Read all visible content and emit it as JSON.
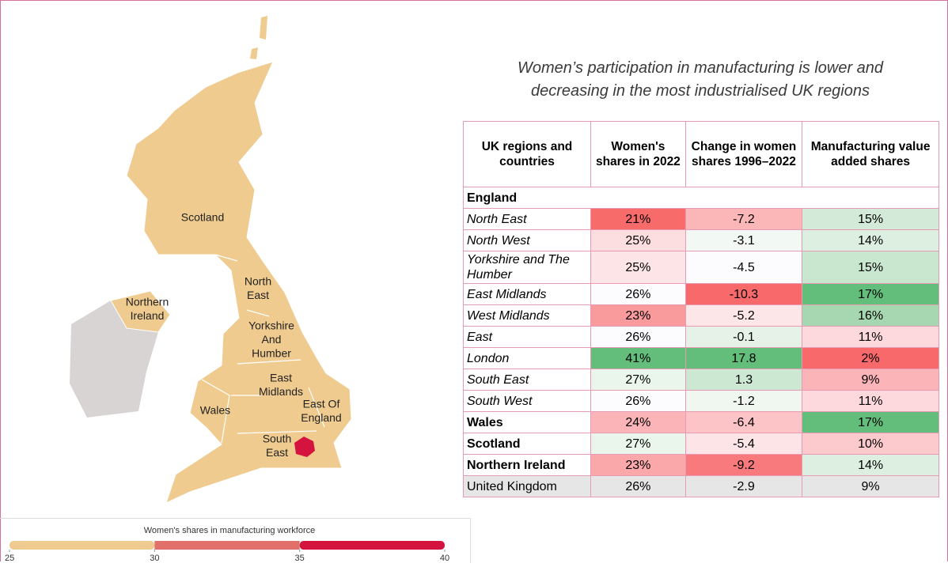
{
  "title": [
    "Women’s participation in manufacturing is lower and",
    "decreasing in the most industrialised UK regions"
  ],
  "map": {
    "labels": [
      {
        "lines": [
          "Scotland"
        ]
      },
      {
        "lines": [
          "Northern",
          "Ireland"
        ]
      },
      {
        "lines": [
          "North",
          "East"
        ]
      },
      {
        "lines": [
          "Yorkshire",
          "And",
          "Humber"
        ]
      },
      {
        "lines": [
          "East",
          "Midlands"
        ]
      },
      {
        "lines": [
          "Wales"
        ]
      },
      {
        "lines": [
          "East Of",
          "England"
        ]
      },
      {
        "lines": [
          "South",
          "East"
        ]
      }
    ],
    "legend": {
      "title": "Women's shares in manufacturing workforce",
      "lim": [
        25,
        40
      ],
      "ticks": [
        25,
        30,
        35,
        40
      ],
      "colors": [
        "#efcb8f",
        "#e2706a",
        "#d5133f"
      ]
    }
  },
  "table": {
    "header": [
      "UK regions and countries",
      "Women's shares in 2022",
      "Change in women shares 1996–2022",
      "Manufacturing value added shares"
    ],
    "rows": [
      {
        "label": "England",
        "style": "bold"
      },
      {
        "label": "North East",
        "style": "italic",
        "cells": [
          "21%",
          "-7.2",
          "15%"
        ],
        "colors": [
          "#ffffff",
          "#f86b6b",
          "#fbb7b7",
          "#d3ead8"
        ]
      },
      {
        "label": "North West",
        "style": "italic",
        "cells": [
          "25%",
          "-3.1",
          "14%"
        ],
        "colors": [
          "#ffffff",
          "#fcdde0",
          "#f2f8f3",
          "#dcefe0"
        ]
      },
      {
        "label": "Yorkshire and The Humber",
        "style": "italic",
        "cells": [
          "25%",
          "-4.5",
          "15%"
        ],
        "colors": [
          "#ffffff",
          "#fce4e7",
          "#fcfcff",
          "#c9e6cf"
        ]
      },
      {
        "label": "East Midlands",
        "style": "italic",
        "cells": [
          "26%",
          "-10.3",
          "17%"
        ],
        "colors": [
          "#ffffff",
          "#fcfcff",
          "#f8696b",
          "#63be7b"
        ]
      },
      {
        "label": "West Midlands",
        "style": "italic",
        "cells": [
          "23%",
          "-5.2",
          "16%"
        ],
        "colors": [
          "#ffffff",
          "#f99a9c",
          "#fde6e8",
          "#a6d7b1"
        ]
      },
      {
        "label": "East",
        "style": "italic",
        "cells": [
          "26%",
          "-0.1",
          "11%"
        ],
        "colors": [
          "#ffffff",
          "#fcfcff",
          "#e6f2e8",
          "#fdd8dc"
        ]
      },
      {
        "label": "London",
        "style": "italic",
        "cells": [
          "41%",
          "17.8",
          "2%"
        ],
        "colors": [
          "#ffffff",
          "#63be7b",
          "#63be7b",
          "#f8696b"
        ]
      },
      {
        "label": "South East",
        "style": "italic",
        "cells": [
          "27%",
          "1.3",
          "9%"
        ],
        "colors": [
          "#ffffff",
          "#eaf5ec",
          "#cce8d3",
          "#fbb4b8"
        ]
      },
      {
        "label": "South West",
        "style": "italic",
        "cells": [
          "26%",
          "-1.2",
          "11%"
        ],
        "colors": [
          "#ffffff",
          "#fcfcff",
          "#f0f7f1",
          "#fdd8dc"
        ]
      },
      {
        "label": "Wales",
        "style": "bold",
        "cells": [
          "24%",
          "-6.4",
          "17%"
        ],
        "colors": [
          "#ffffff",
          "#fbb4b8",
          "#fcc4c7",
          "#63be7b"
        ]
      },
      {
        "label": "Scotland",
        "style": "bold",
        "cells": [
          "27%",
          "-5.4",
          "10%"
        ],
        "colors": [
          "#ffffff",
          "#eaf5ec",
          "#fde4e6",
          "#fcc9cc"
        ]
      },
      {
        "label": "Northern Ireland",
        "style": "bold",
        "cells": [
          "23%",
          "-9.2",
          "14%"
        ],
        "colors": [
          "#ffffff",
          "#fba8ab",
          "#f97a7c",
          "#dcefe0"
        ]
      },
      {
        "label": "United Kingdom",
        "style": "normal",
        "cells": [
          "26%",
          "-2.9",
          "9%"
        ],
        "colors": [
          "#e7e6e6",
          "#e7e6e6",
          "#e7e6e6",
          "#e7e6e6"
        ]
      }
    ]
  }
}
